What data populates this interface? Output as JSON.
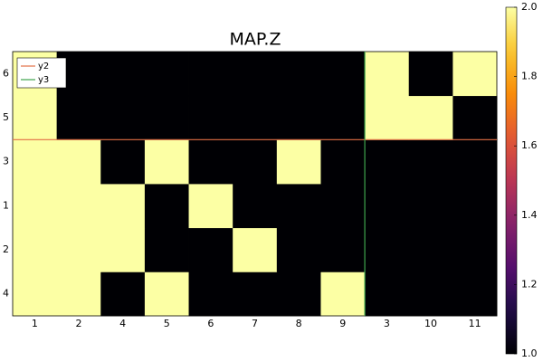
{
  "chart_data": {
    "type": "heatmap",
    "title": "MAP.Z",
    "categories": [
      "1",
      "2",
      "4",
      "5",
      "6",
      "7",
      "8",
      "9",
      "3",
      "10",
      "11"
    ],
    "y_categories": [
      "4",
      "2",
      "1",
      "3",
      "5",
      "6"
    ],
    "z": [
      [
        2,
        2,
        1,
        2,
        1,
        1,
        1,
        2,
        1,
        1,
        1
      ],
      [
        2,
        2,
        2,
        1,
        1,
        2,
        1,
        1,
        1,
        1,
        1
      ],
      [
        2,
        2,
        2,
        1,
        2,
        1,
        1,
        1,
        1,
        1,
        1
      ],
      [
        2,
        2,
        1,
        2,
        1,
        1,
        2,
        1,
        1,
        1,
        1
      ],
      [
        2,
        1,
        1,
        1,
        1,
        1,
        1,
        1,
        2,
        2,
        1
      ],
      [
        2,
        1,
        1,
        1,
        1,
        1,
        1,
        1,
        2,
        1,
        2
      ]
    ],
    "xlim": [
      0,
      11
    ],
    "ylim": [
      0,
      6
    ],
    "zlim": [
      1,
      2
    ],
    "zticks": [
      {
        "value": 1,
        "label": "1.0"
      },
      {
        "value": 1.2,
        "label": "1.2"
      },
      {
        "value": 1.4,
        "label": "1.4"
      },
      {
        "value": 1.6,
        "label": "1.6"
      },
      {
        "value": 1.8,
        "label": "1.8"
      },
      {
        "value": 2,
        "label": "2.0"
      }
    ],
    "colormap": "inferno",
    "series": [
      {
        "name": "y2",
        "color": "#e26f46",
        "y": 4
      },
      {
        "name": "y3",
        "color": "#3da44d",
        "x": 8
      }
    ],
    "legend": "top-left"
  }
}
